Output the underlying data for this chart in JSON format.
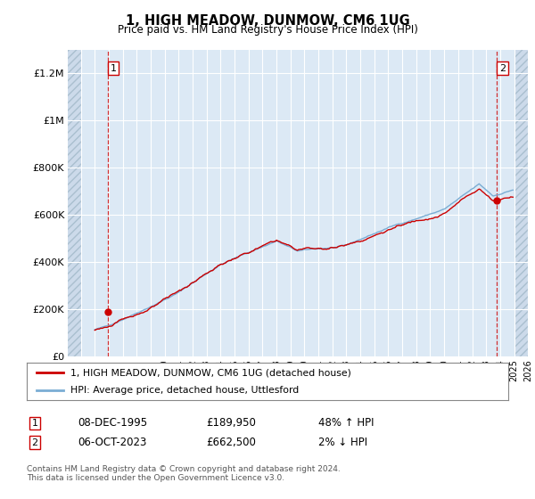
{
  "title": "1, HIGH MEADOW, DUNMOW, CM6 1UG",
  "subtitle": "Price paid vs. HM Land Registry's House Price Index (HPI)",
  "ylim": [
    0,
    1300000
  ],
  "xlim_left": 1993.0,
  "xlim_right": 2026.0,
  "hatch_left_end": 1994.0,
  "hatch_right_start": 2025.0,
  "yticks": [
    0,
    200000,
    400000,
    600000,
    800000,
    1000000,
    1200000
  ],
  "ytick_labels": [
    "£0",
    "£200K",
    "£400K",
    "£600K",
    "£800K",
    "£1M",
    "£1.2M"
  ],
  "bg_color": "#dce9f5",
  "hatch_bg_color": "#ccdaea",
  "grid_color": "#ffffff",
  "red_color": "#cc0000",
  "blue_color": "#7aadd4",
  "marker1_x": 1995.917,
  "marker1_y": 189950,
  "marker2_x": 2023.75,
  "marker2_y": 662500,
  "legend_line1": "1, HIGH MEADOW, DUNMOW, CM6 1UG (detached house)",
  "legend_line2": "HPI: Average price, detached house, Uttlesford",
  "table_row1": [
    "1",
    "08-DEC-1995",
    "£189,950",
    "48% ↑ HPI"
  ],
  "table_row2": [
    "2",
    "06-OCT-2023",
    "£662,500",
    "2% ↓ HPI"
  ],
  "footer": "Contains HM Land Registry data © Crown copyright and database right 2024.\nThis data is licensed under the Open Government Licence v3.0."
}
